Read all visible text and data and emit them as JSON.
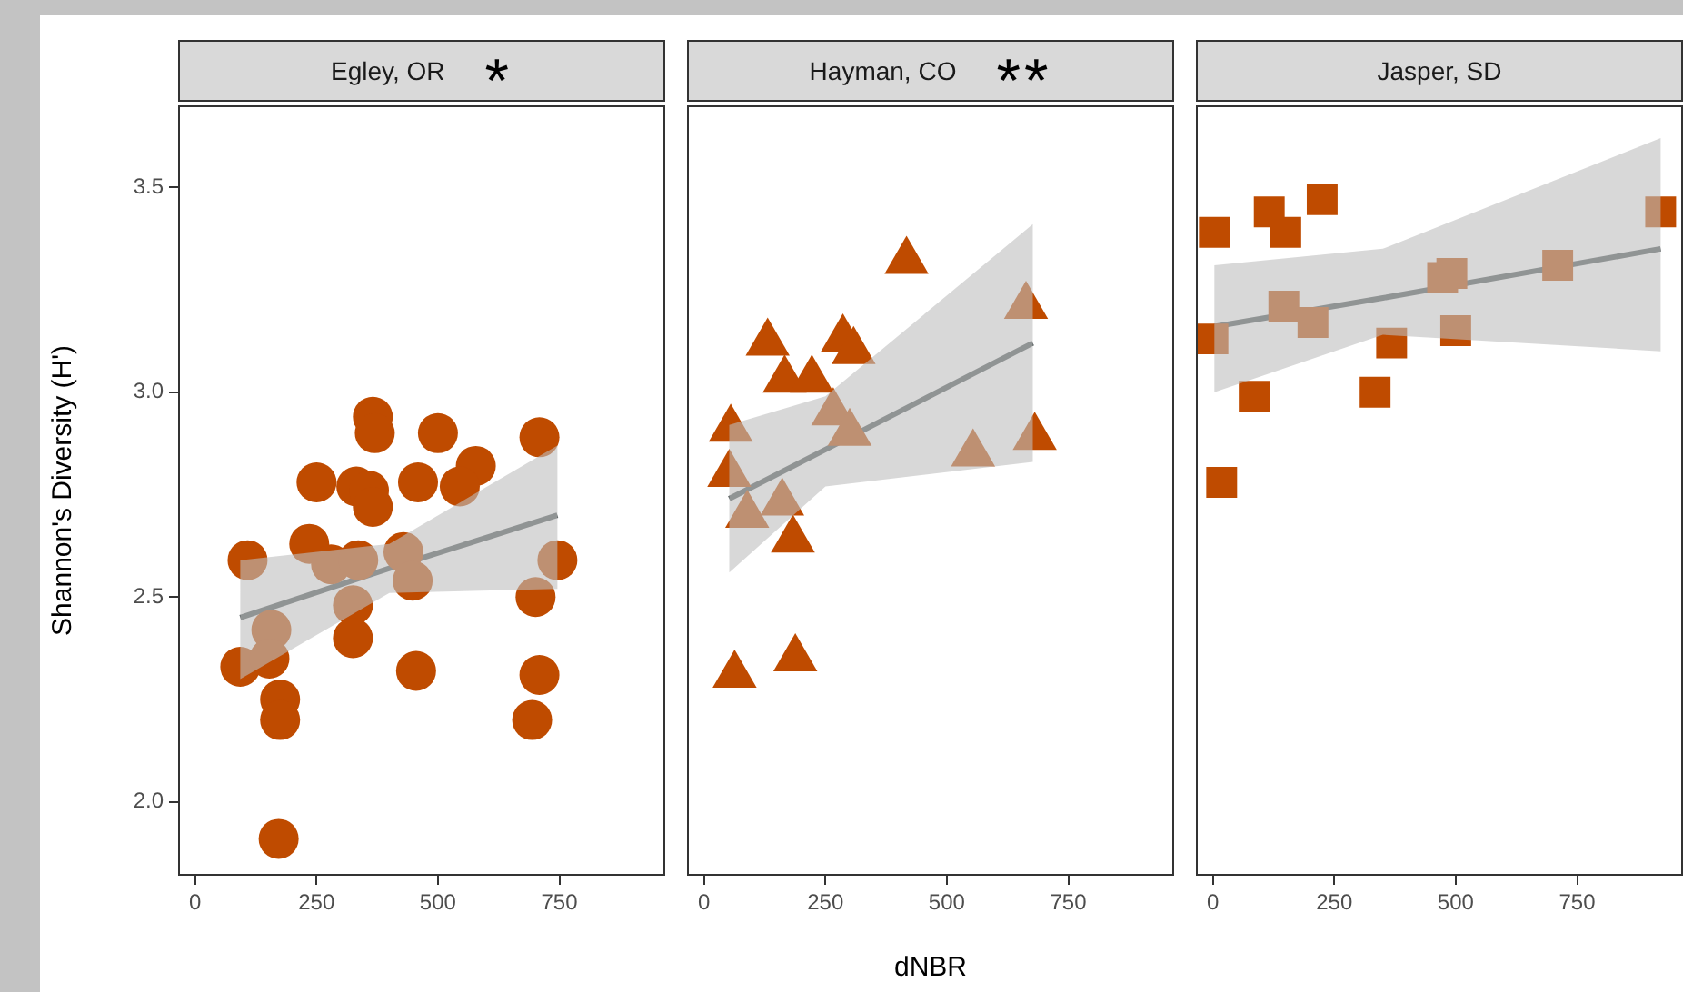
{
  "chart_data": [
    {
      "type": "scatter",
      "title": "Egley, OR",
      "annotations": [
        "*"
      ],
      "ylabel": "Shannon's Diversity (H')",
      "xlim": [
        -35,
        968
      ],
      "xticks": [
        0,
        250,
        500,
        750
      ],
      "ylim": [
        1.82,
        3.7
      ],
      "yticks": [
        {
          "value": 2,
          "label": "2.0"
        },
        {
          "value": 2.5,
          "label": "2.5"
        },
        {
          "value": 3,
          "label": "3.0"
        },
        {
          "value": 3.5,
          "label": "3.5"
        }
      ],
      "grid": false,
      "legend": false,
      "series": [
        {
          "type": "scatter",
          "marker": "circle",
          "color": "#bf4b00",
          "x": [
            108,
            366,
            370,
            500,
            709,
            250,
            332,
            358,
            366,
            459,
            578,
            545,
            235,
            280,
            336,
            429,
            448,
            746,
            701,
            325,
            325,
            157,
            93,
            153,
            455,
            709,
            175,
            175,
            694,
            172
          ],
          "values": [
            2.59,
            2.94,
            2.9,
            2.9,
            2.89,
            2.78,
            2.77,
            2.76,
            2.72,
            2.78,
            2.82,
            2.77,
            2.63,
            2.58,
            2.59,
            2.61,
            2.54,
            2.59,
            2.5,
            2.48,
            2.4,
            2.42,
            2.33,
            2.35,
            2.32,
            2.31,
            2.25,
            2.2,
            2.2,
            1.91
          ]
        },
        {
          "type": "line",
          "marker": "none",
          "color": "#4d5556",
          "x": [
            93,
            400,
            746
          ],
          "values": [
            2.45,
            2.57,
            2.7
          ],
          "lower": [
            2.3,
            2.51,
            2.52
          ],
          "upper": [
            2.59,
            2.63,
            2.87
          ]
        }
      ]
    },
    {
      "type": "scatter",
      "title": "Hayman, CO",
      "annotations": [
        "**"
      ],
      "xlabel": "dNBR",
      "xlim": [
        -35,
        968
      ],
      "xticks": [
        0,
        250,
        500,
        750
      ],
      "ylim": [
        1.82,
        3.7
      ],
      "tick_labels": "x",
      "grid": false,
      "legend": false,
      "series": [
        {
          "type": "scatter",
          "marker": "triangle",
          "color": "#bf4b00",
          "x": [
            417,
            663,
            131,
            286,
            308,
            166,
            222,
            55,
            266,
            300,
            681,
            554,
            52,
            89,
            161,
            183,
            63,
            188
          ],
          "values": [
            3.32,
            3.21,
            3.12,
            3.13,
            3.1,
            3.03,
            3.03,
            2.91,
            2.95,
            2.9,
            2.89,
            2.85,
            2.8,
            2.7,
            2.73,
            2.64,
            2.31,
            2.35
          ]
        },
        {
          "type": "line",
          "marker": "none",
          "color": "#4d5556",
          "x": [
            52,
            250,
            677
          ],
          "values": [
            2.74,
            2.86,
            3.12
          ],
          "lower": [
            2.56,
            2.77,
            2.83
          ],
          "upper": [
            2.92,
            2.99,
            3.41
          ]
        }
      ]
    },
    {
      "type": "scatter",
      "title": "Jasper, SD",
      "xlim": [
        -35,
        968
      ],
      "xticks": [
        0,
        250,
        500,
        750
      ],
      "ylim": [
        1.82,
        3.7
      ],
      "tick_labels": "x",
      "grid": false,
      "legend": false,
      "series": [
        {
          "type": "scatter",
          "marker": "square",
          "color": "#bf4b00",
          "x": [
            3,
            116,
            150,
            225,
            922,
            473,
            492,
            710,
            146,
            206,
            0,
            368,
            500,
            85,
            334,
            18
          ],
          "values": [
            3.39,
            3.44,
            3.39,
            3.47,
            3.44,
            3.28,
            3.29,
            3.31,
            3.21,
            3.17,
            3.13,
            3.12,
            3.15,
            2.99,
            3.0,
            2.78
          ]
        },
        {
          "type": "line",
          "marker": "none",
          "color": "#4d5556",
          "x": [
            3,
            350,
            922
          ],
          "values": [
            3.16,
            3.23,
            3.35
          ],
          "lower": [
            3.0,
            3.14,
            3.1
          ],
          "upper": [
            3.31,
            3.35,
            3.62
          ]
        }
      ]
    }
  ]
}
